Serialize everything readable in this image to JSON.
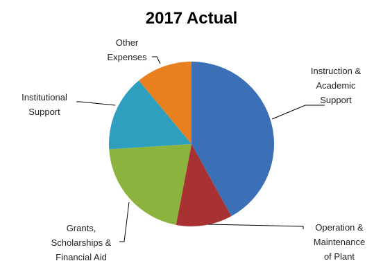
{
  "chart_data": {
    "type": "pie",
    "title": "2017 Actual",
    "slices": [
      {
        "name": "Instruction & Academic Support",
        "label_lines": [
          "Instruction &",
          "Academic",
          "Support"
        ],
        "value": 42,
        "color": "#3b6fb6"
      },
      {
        "name": "Operation & Maintenance of Plant",
        "label_lines": [
          "Operation &",
          "Maintenance",
          "of Plant"
        ],
        "value": 11,
        "color": "#a83232"
      },
      {
        "name": "Grants, Scholarships & Financial Aid",
        "label_lines": [
          "Grants,",
          "Scholarships &",
          "Financial Aid"
        ],
        "value": 21,
        "color": "#8db33f"
      },
      {
        "name": "Institutional Support",
        "label_lines": [
          "Institutional",
          "Support"
        ],
        "value": 15,
        "color": "#2f9fbf"
      },
      {
        "name": "Other Expenses",
        "label_lines": [
          "Other",
          "Expenses"
        ],
        "value": 11,
        "color": "#e8801f"
      }
    ],
    "legend": "none",
    "data_labels": "category names with leader lines"
  }
}
